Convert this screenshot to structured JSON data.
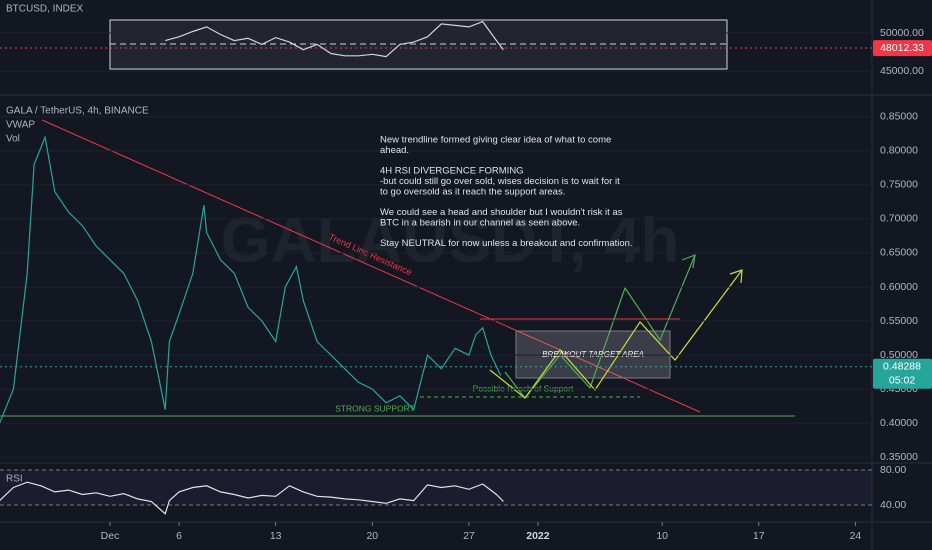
{
  "chart_data": [
    {
      "type": "line",
      "title": "BTCUSD, INDEX",
      "color": "#d1d4dc",
      "x": [
        4,
        5,
        6,
        7,
        8,
        9,
        10,
        11,
        12,
        13,
        14,
        15,
        16,
        17,
        18,
        19,
        20,
        21,
        22,
        23,
        24,
        25,
        26,
        27,
        28,
        28.5
      ],
      "values": [
        49000,
        49500,
        50200,
        50800,
        49800,
        49000,
        49300,
        48500,
        49400,
        48800,
        47800,
        48500,
        47300,
        47000,
        47000,
        47200,
        46900,
        48500,
        48800,
        49500,
        51200,
        51000,
        50800,
        51500,
        49000,
        47800
      ],
      "xlim": [
        -7.97,
        55.2
      ],
      "ylim": [
        41842,
        54342
      ],
      "yticks": [
        {
          "value": 50000,
          "label": "50000.00"
        },
        {
          "value": 45000,
          "label": "45000.00"
        }
      ],
      "last_price": 48012.33,
      "last_color": "#f23645",
      "grid": true
    },
    {
      "type": "line",
      "title": "GALA / TetherUS, 4h, BINANCE",
      "indicators": [
        "VWAP",
        "Vol"
      ],
      "watermark": "GALAUSDT, 4h",
      "color": "#26a69a",
      "x": [
        -8,
        -7,
        -6,
        -5.5,
        -4.7,
        -4,
        -3,
        -2,
        -1,
        0,
        1,
        2,
        3,
        3.5,
        4,
        4.3,
        5,
        6,
        6.8,
        7,
        8,
        9,
        10,
        11,
        12,
        12.7,
        13.5,
        14,
        15,
        16,
        17,
        18,
        19,
        20,
        21,
        22,
        23,
        24,
        25,
        26,
        26.5,
        27,
        27.6,
        28.3
      ],
      "values": [
        0.4,
        0.45,
        0.62,
        0.78,
        0.82,
        0.74,
        0.71,
        0.69,
        0.66,
        0.64,
        0.62,
        0.58,
        0.52,
        0.47,
        0.42,
        0.52,
        0.56,
        0.62,
        0.72,
        0.68,
        0.64,
        0.62,
        0.57,
        0.55,
        0.52,
        0.6,
        0.63,
        0.58,
        0.52,
        0.5,
        0.48,
        0.46,
        0.45,
        0.43,
        0.44,
        0.42,
        0.5,
        0.48,
        0.51,
        0.5,
        0.53,
        0.54,
        0.5,
        0.47
      ],
      "xlim": [
        -7.97,
        55.2
      ],
      "ylim": [
        0.343,
        0.879
      ],
      "yticks": [
        {
          "value": 0.85,
          "label": "0.85000"
        },
        {
          "value": 0.8,
          "label": "0.80000"
        },
        {
          "value": 0.75,
          "label": "0.75000"
        },
        {
          "value": 0.7,
          "label": "0.70000"
        },
        {
          "value": 0.65,
          "label": "0.65000"
        },
        {
          "value": 0.6,
          "label": "0.60000"
        },
        {
          "value": 0.55,
          "label": "0.55000"
        },
        {
          "value": 0.5,
          "label": "0.50000"
        },
        {
          "value": 0.45,
          "label": "0.45000"
        },
        {
          "value": 0.4,
          "label": "0.40000"
        },
        {
          "value": 0.35,
          "label": "0.35000"
        }
      ],
      "last_price": 0.48288,
      "countdown": "05:02",
      "last_color": "#26a69a",
      "grid": true,
      "annotations": {
        "note": [
          [
            "New trendline formed giving clear idea of what to come",
            "ahead."
          ],
          [
            "4H RSI DIVERGENCE FORMING",
            "-but could still go over sold, wises decision is to wait for it",
            "to go oversold as it reach the support areas."
          ],
          [
            "We could see a head and shoulder but I wouldn't risk it as",
            "BTC in a bearish in our channel as seen above."
          ],
          [
            "Stay NEUTRAL for now unless a breakout and confirmation."
          ]
        ],
        "trendline": "Trend Line Resistance",
        "target": "BREAKOUT TARGET AREA",
        "support_reach": "Possible Reach of Support",
        "support": "STRONG SUPPORT"
      }
    },
    {
      "type": "line",
      "title": "RSI",
      "color": "#e0e3eb",
      "x": [
        -8,
        -7,
        -6,
        -5,
        -4,
        -3,
        -2,
        -1,
        0,
        1,
        2,
        3,
        4,
        4.3,
        5,
        6,
        7,
        8,
        9,
        10,
        11,
        12,
        13,
        14,
        15,
        16,
        17,
        18,
        19,
        20,
        21,
        22,
        23,
        24,
        25,
        26,
        27,
        28,
        28.5
      ],
      "values": [
        45,
        60,
        66,
        62,
        55,
        57,
        52,
        54,
        50,
        53,
        47,
        44,
        30,
        45,
        55,
        60,
        62,
        55,
        52,
        48,
        51,
        50,
        62,
        55,
        50,
        49,
        47,
        46,
        44,
        42,
        47,
        45,
        63,
        60,
        62,
        58,
        64,
        52,
        44
      ],
      "xlim": [
        -7.97,
        55.2
      ],
      "ylim": [
        20.6,
        85.7
      ],
      "yticks": [
        {
          "value": 80,
          "label": "80.00"
        },
        {
          "value": 40,
          "label": "40.00"
        }
      ],
      "xticks": [
        {
          "value": 0,
          "label": "Dec"
        },
        {
          "value": 5,
          "label": "6"
        },
        {
          "value": 12,
          "label": "13"
        },
        {
          "value": 19,
          "label": "20"
        },
        {
          "value": 26,
          "label": "27"
        },
        {
          "value": 31,
          "label": "2022"
        },
        {
          "value": 40,
          "label": "10"
        },
        {
          "value": 47,
          "label": "17"
        },
        {
          "value": 54,
          "label": "24"
        }
      ]
    }
  ]
}
